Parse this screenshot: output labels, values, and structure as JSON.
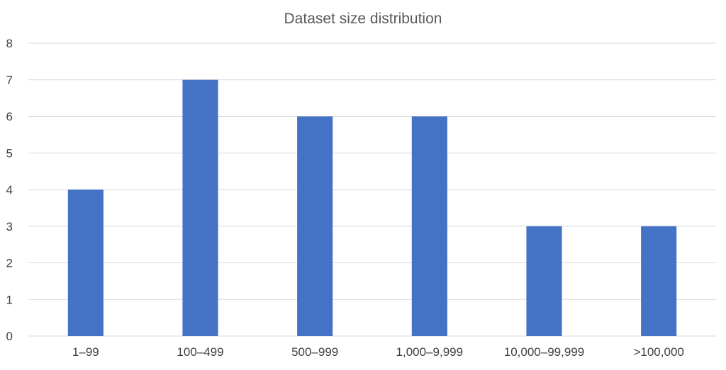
{
  "chart_data": {
    "type": "bar",
    "title": "Dataset size distribution",
    "categories": [
      "1–99",
      "100–499",
      "500–999",
      "1,000–9,999",
      "10,000–99,999",
      ">100,000"
    ],
    "values": [
      4,
      7,
      6,
      6,
      3,
      3
    ],
    "xlabel": "",
    "ylabel": "",
    "ylim": [
      0,
      8
    ],
    "yticks": [
      0,
      1,
      2,
      3,
      4,
      5,
      6,
      7,
      8
    ],
    "grid": true,
    "legend": "none",
    "bar_color": "#4472c4"
  }
}
